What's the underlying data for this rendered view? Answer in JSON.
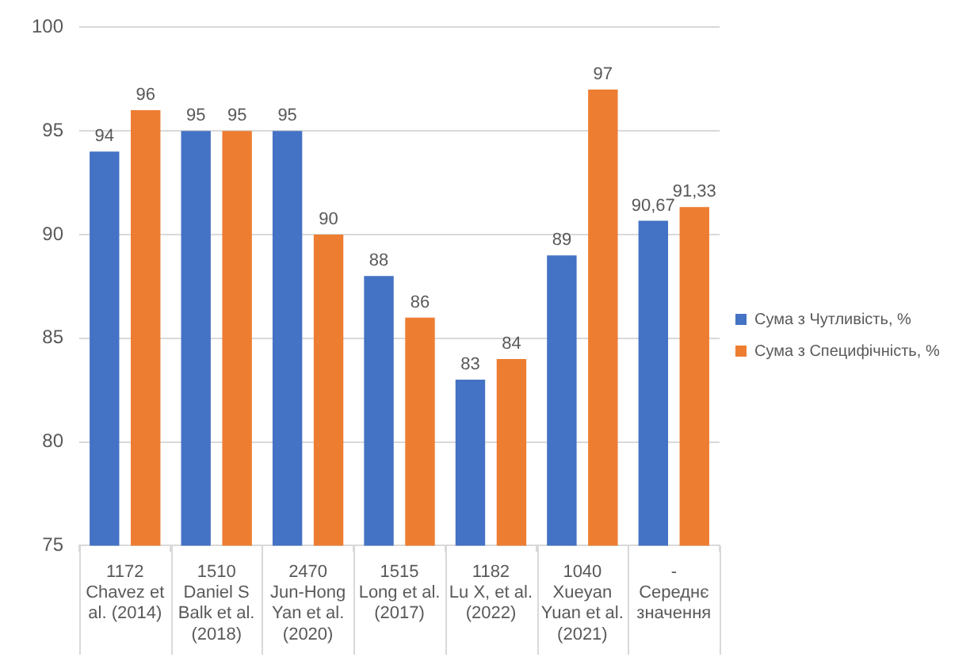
{
  "chart_data": {
    "type": "bar",
    "categories": [
      "1172\nChavez et\nal. (2014)",
      "1510\nDaniel S\nBalk et al.\n(2018)",
      "2470\nJun-Hong\nYan et al.\n(2020)",
      "1515\nLong et al.\n(2017)",
      "1182\nLu X, et al.\n(2022)",
      "1040\nXueyan\nYuan et al.\n(2021)",
      "-\nСереднє\nзначення"
    ],
    "series": [
      {
        "name": "Сума з Чутливість, %",
        "color": "#4472c4",
        "values": [
          94,
          95,
          95,
          88,
          83,
          89,
          90.67
        ],
        "value_labels": [
          "94",
          "95",
          "95",
          "88",
          "83",
          "89",
          "90,67"
        ]
      },
      {
        "name": "Сума з Специфічність, %",
        "color": "#ed7d31",
        "values": [
          96,
          95,
          90,
          86,
          84,
          97,
          91.33
        ],
        "value_labels": [
          "96",
          "95",
          "90",
          "86",
          "84",
          "97",
          "91,33"
        ]
      }
    ],
    "ylim": [
      75,
      100
    ],
    "yticks": [
      75,
      80,
      85,
      90,
      95,
      100
    ],
    "grid": "y",
    "legend": "right"
  }
}
